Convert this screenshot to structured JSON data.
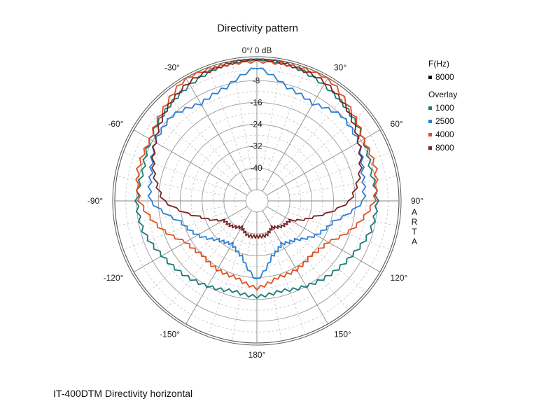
{
  "chart_data": {
    "type": "polar-line",
    "title": "Directivity pattern",
    "r_unit": "dB",
    "r_range": [
      -48,
      0
    ],
    "r_ticks": [
      0,
      -8,
      -16,
      -24,
      -32,
      -40
    ],
    "r_tick_labels": [
      "0°/ 0 dB",
      "-8",
      "-16",
      "-24",
      "-32",
      "-40"
    ],
    "angle_ticks": [
      0,
      30,
      60,
      90,
      120,
      150,
      180,
      -150,
      -120,
      -90,
      -60,
      -30
    ],
    "angle_tick_labels": [
      "30°",
      "60°",
      "90°",
      "120°",
      "150°",
      "180°",
      "-150°",
      "-120°",
      "-90°",
      "-60°",
      "-30°"
    ],
    "grid": true,
    "legend_position": "right",
    "primary_header": "F(Hz)",
    "primary_series": [
      {
        "name": "8000",
        "color": "#111111"
      }
    ],
    "overlay_header": "Overlay",
    "angles_deg": [
      0,
      15,
      30,
      45,
      60,
      75,
      90,
      105,
      120,
      135,
      150,
      165,
      180
    ],
    "series": [
      {
        "name": "1000",
        "color": "#1a7a78",
        "values": [
          0,
          -1,
          -3,
          -5,
          -7,
          -9,
          -8,
          -9,
          -12,
          -14,
          -16,
          -18,
          -17
        ]
      },
      {
        "name": "2500",
        "color": "#2a7fd4",
        "values": [
          -3,
          -9,
          -11,
          -8,
          -9,
          -12,
          -13,
          -23,
          -27,
          -32,
          -34,
          -31,
          -23
        ]
      },
      {
        "name": "4000",
        "color": "#e0501e",
        "values": [
          -1,
          -1,
          0,
          -4,
          -7,
          -7,
          -9,
          -15,
          -22,
          -24,
          -23,
          -23,
          -20
        ]
      },
      {
        "name": "8000",
        "color": "#7a2424",
        "values": [
          0,
          -1,
          -2,
          -5,
          -9,
          -13,
          -18,
          -30,
          -38,
          -39,
          -41,
          -39,
          -39
        ]
      }
    ]
  },
  "side_label": "ARTA",
  "caption": "IT-400DTM Directivity horizontal"
}
